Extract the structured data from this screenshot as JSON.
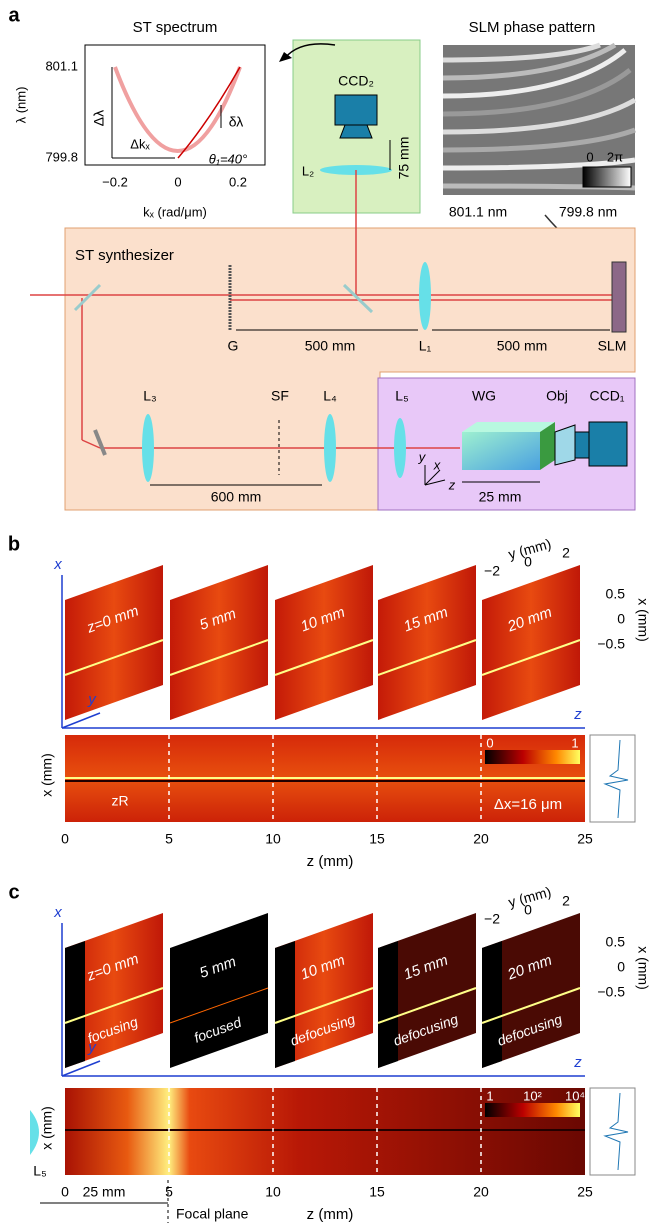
{
  "panel_a": {
    "label": "a",
    "spectrum": {
      "title": "ST spectrum",
      "y_label": "λ (nm)",
      "y_ticks": [
        "801.1",
        "799.8"
      ],
      "x_ticks": [
        "−0.2",
        "0",
        "0.2"
      ],
      "x_label": "kₓ (rad/μm)",
      "delta_lambda": "Δλ",
      "delta_k": "Δkₓ",
      "small_delta_lambda": "δλ",
      "angle": "θ₁=40°"
    },
    "detection": {
      "camera": "CCD₂",
      "lens": "L₂",
      "distance": "75 mm"
    },
    "slm_pattern": {
      "title": "SLM phase pattern",
      "colorbar_low": "0",
      "colorbar_high": "2π",
      "left_wavelength": "801.1 nm",
      "right_wavelength": "799.8 nm"
    },
    "synthesizer": {
      "title": "ST synthesizer",
      "grating": "G",
      "distance_1": "500 mm",
      "lens_1": "L₁",
      "distance_2": "500 mm",
      "slm": "SLM",
      "lens_3": "L₃",
      "filter": "SF",
      "lens_4": "L₄",
      "distance_3": "600 mm"
    },
    "waveguide": {
      "lens_5": "L₅",
      "waveguide": "WG",
      "objective": "Obj",
      "camera": "CCD₁",
      "length": "25 mm",
      "axis_x": "x",
      "axis_y": "y",
      "axis_z": "z"
    }
  },
  "panel_b": {
    "label": "b",
    "frames": [
      "z=0 mm",
      "5 mm",
      "10 mm",
      "15 mm",
      "20 mm"
    ],
    "axis_x": "x",
    "axis_y": "y",
    "axis_z": "z",
    "y_axis_label": "y (mm)",
    "y_ticks": [
      "−2",
      "0",
      "2"
    ],
    "x_axis_label": "x (mm)",
    "x_ticks": [
      "0.5",
      "0",
      "−0.5"
    ],
    "map": {
      "y_label": "x (mm)",
      "colorbar_ticks": [
        "0",
        "1"
      ],
      "rayleigh": "zR",
      "width": "Δx=16 μm",
      "x_ticks": [
        "0",
        "5",
        "10",
        "15",
        "20",
        "25"
      ],
      "x_label": "z (mm)"
    }
  },
  "panel_c": {
    "label": "c",
    "frames": [
      "z=0 mm",
      "5 mm",
      "10 mm",
      "15 mm",
      "20 mm"
    ],
    "states": [
      "focusing",
      "focused",
      "defocusing",
      "defocusing",
      "defocusing"
    ],
    "axis_x": "x",
    "axis_y": "y",
    "axis_z": "z",
    "y_axis_label": "y (mm)",
    "y_ticks": [
      "−2",
      "0",
      "2"
    ],
    "x_axis_label": "x (mm)",
    "x_ticks": [
      "0.5",
      "0",
      "−0.5"
    ],
    "map": {
      "y_label": "x (mm)",
      "colorbar_ticks": [
        "1",
        "10²",
        "10⁴"
      ],
      "lens": "L₅",
      "offset": "25 mm",
      "focal_plane": "Focal plane",
      "x_ticks": [
        "0",
        "5",
        "10",
        "15",
        "20",
        "25"
      ],
      "x_label": "z (mm)"
    }
  }
}
